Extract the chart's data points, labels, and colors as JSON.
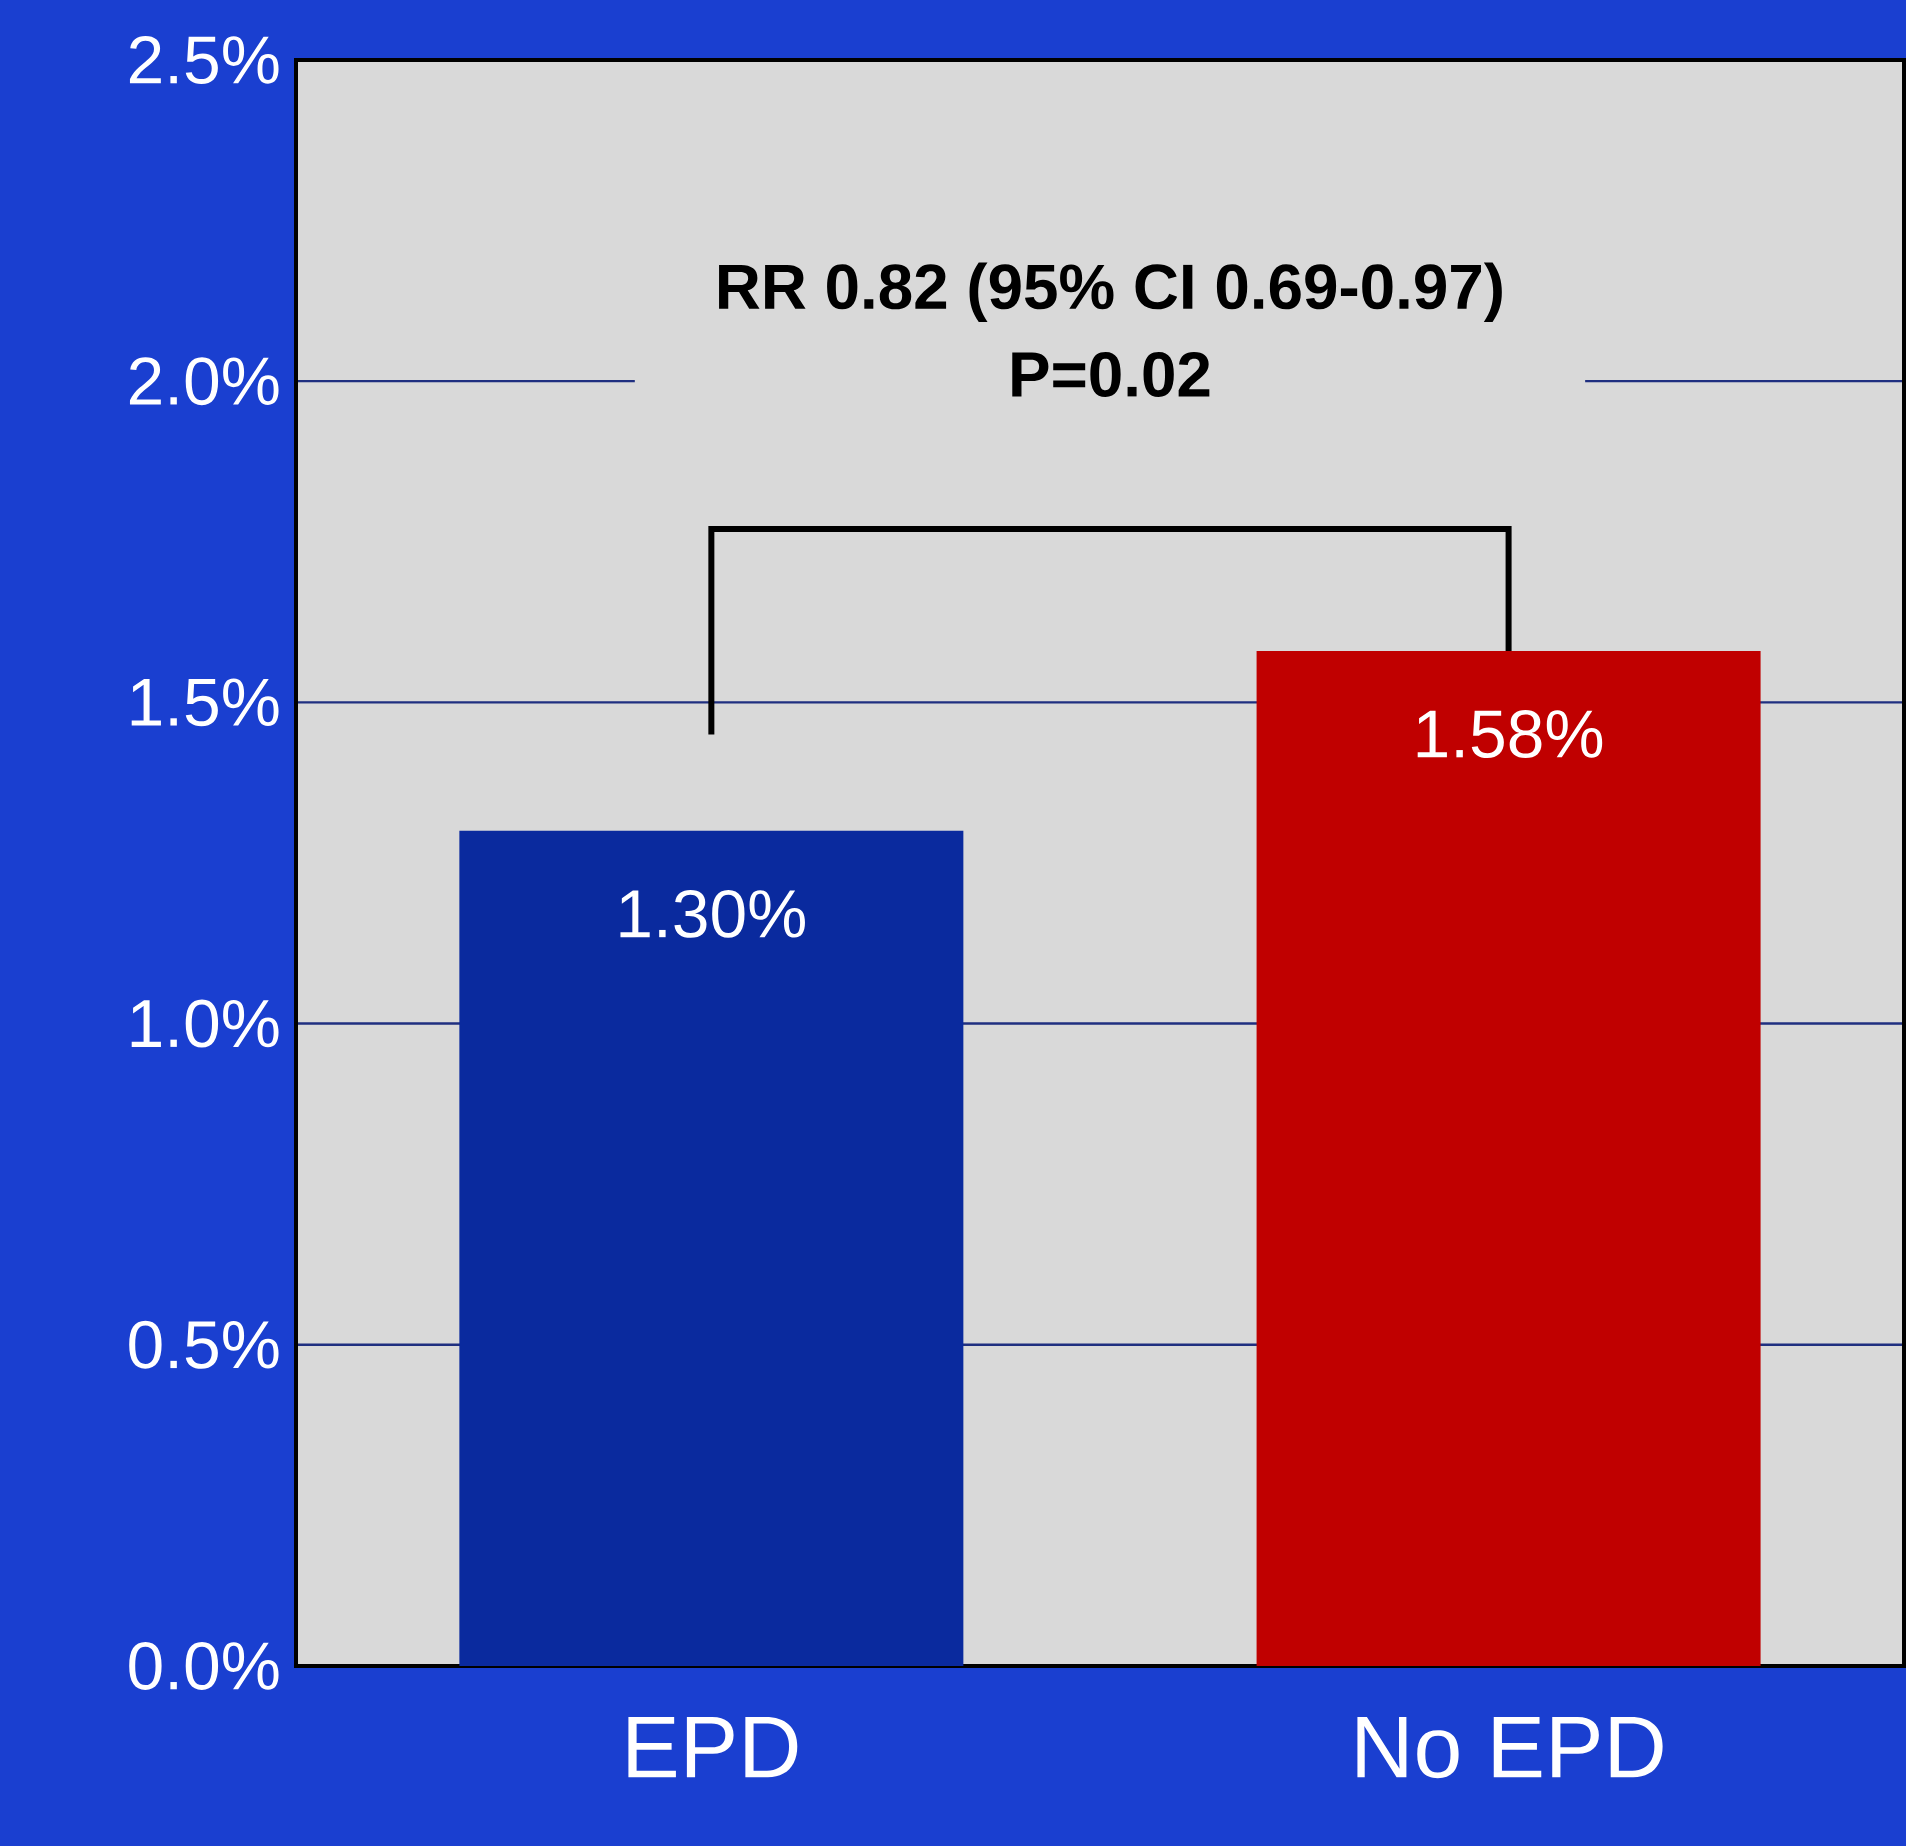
{
  "chart_data": {
    "type": "bar",
    "categories": [
      "EPD",
      "No EPD"
    ],
    "values": [
      1.3,
      1.58
    ],
    "colors": [
      "#0a2a9e",
      "#c00000"
    ],
    "value_labels": [
      "1.30%",
      "1.58%"
    ],
    "ylim": [
      0,
      2.5
    ],
    "yticks": [
      {
        "value": 0,
        "label": "0.0%"
      },
      {
        "value": 0.5,
        "label": "0.5%"
      },
      {
        "value": 1.0,
        "label": "1.0%"
      },
      {
        "value": 1.5,
        "label": "1.5%"
      },
      {
        "value": 2.0,
        "label": "2.0%"
      },
      {
        "value": 2.5,
        "label": "2.5%"
      }
    ],
    "grid": "y",
    "annotations": [
      "RR 0.82 (95% CI 0.69-0.97)",
      "P=0.02"
    ]
  }
}
